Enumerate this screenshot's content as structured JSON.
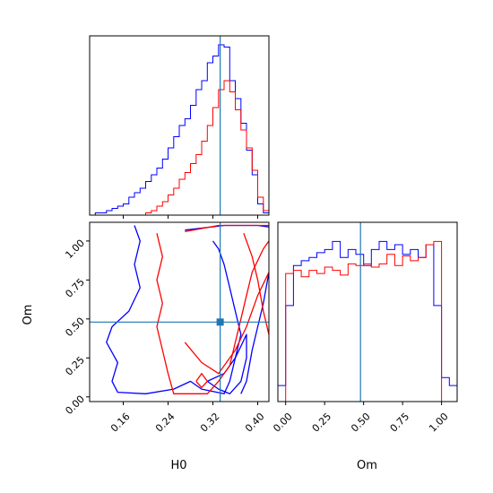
{
  "chart_data": {
    "type": "corner",
    "parameters": [
      "H0",
      "Om"
    ],
    "colors": {
      "run_a": "#0000ff",
      "run_b": "#ff0000",
      "truth": "#1f77b4"
    },
    "truth": {
      "H0": 0.333,
      "Om": 0.48
    },
    "panels": [
      {
        "id": "h0-marginal",
        "type": "step_histogram",
        "x_range": [
          0.1,
          0.42
        ],
        "bin_edges": [
          0.1,
          0.11,
          0.12,
          0.13,
          0.14,
          0.15,
          0.16,
          0.17,
          0.18,
          0.19,
          0.2,
          0.21,
          0.22,
          0.23,
          0.24,
          0.25,
          0.26,
          0.27,
          0.28,
          0.29,
          0.3,
          0.31,
          0.32,
          0.33,
          0.34,
          0.35,
          0.36,
          0.37,
          0.38,
          0.39,
          0.4,
          0.41,
          0.42
        ],
        "series": [
          {
            "id": "run_a",
            "color": "#0000ff",
            "counts": [
              0,
              1,
              1,
              2,
              3,
              4,
              5,
              8,
              10,
              12,
              15,
              18,
              21,
              25,
              30,
              35,
              40,
              43,
              49,
              56,
              60,
              68,
              71,
              76,
              75,
              60,
              52,
              41,
              29,
              18,
              5,
              1
            ]
          },
          {
            "id": "run_b",
            "color": "#ff0000",
            "counts": [
              0,
              0,
              0,
              0,
              0,
              0,
              0,
              0,
              0,
              0,
              1,
              2,
              4,
              6,
              9,
              12,
              16,
              19,
              23,
              27,
              33,
              40,
              48,
              56,
              60,
              55,
              47,
              38,
              30,
              20,
              8,
              2
            ]
          }
        ],
        "y_range": [
          0,
          80
        ]
      },
      {
        "id": "joint-h0-om",
        "type": "contour",
        "x_label": "H0",
        "y_label": "Om",
        "x_range": [
          0.1,
          0.42
        ],
        "y_range": [
          -0.03,
          1.12
        ],
        "x_ticks": [
          0.16,
          0.24,
          0.32,
          0.4
        ],
        "x_tick_labels": [
          "0.16",
          "0.24",
          "0.32",
          "0.40"
        ],
        "y_ticks": [
          0.0,
          0.25,
          0.5,
          0.75,
          1.0
        ],
        "y_tick_labels": [
          "0.00",
          "0.25",
          "0.50",
          "0.75",
          "1.00"
        ],
        "contours": [
          {
            "series": "run_a",
            "color": "#0000ff",
            "points": [
              [
                0.18,
                1.1
              ],
              [
                0.19,
                1.0
              ],
              [
                0.18,
                0.85
              ],
              [
                0.19,
                0.7
              ],
              [
                0.17,
                0.55
              ],
              [
                0.14,
                0.45
              ],
              [
                0.13,
                0.35
              ],
              [
                0.15,
                0.22
              ],
              [
                0.14,
                0.1
              ],
              [
                0.15,
                0.03
              ],
              [
                0.2,
                0.02
              ],
              [
                0.25,
                0.05
              ],
              [
                0.28,
                0.1
              ],
              [
                0.3,
                0.05
              ],
              [
                0.34,
                0.02
              ],
              [
                0.35,
                0.1
              ],
              [
                0.36,
                0.25
              ],
              [
                0.37,
                0.4
              ],
              [
                0.36,
                0.55
              ],
              [
                0.35,
                0.7
              ],
              [
                0.34,
                0.85
              ],
              [
                0.33,
                0.95
              ],
              [
                0.32,
                1.0
              ]
            ]
          },
          {
            "series": "run_a",
            "color": "#0000ff",
            "points": [
              [
                0.31,
                0.1
              ],
              [
                0.33,
                0.05
              ],
              [
                0.35,
                0.02
              ],
              [
                0.37,
                0.1
              ],
              [
                0.38,
                0.25
              ],
              [
                0.38,
                0.4
              ],
              [
                0.36,
                0.25
              ],
              [
                0.34,
                0.15
              ],
              [
                0.31,
                0.1
              ]
            ]
          },
          {
            "series": "run_a",
            "color": "#0000ff",
            "points": [
              [
                0.37,
                0.02
              ],
              [
                0.38,
                0.1
              ],
              [
                0.39,
                0.3
              ],
              [
                0.41,
                0.6
              ],
              [
                0.42,
                0.8
              ]
            ]
          },
          {
            "series": "run_a",
            "color": "#0000ff",
            "points": [
              [
                0.27,
                1.07
              ],
              [
                0.34,
                1.1
              ],
              [
                0.4,
                1.1
              ],
              [
                0.42,
                1.09
              ]
            ]
          },
          {
            "series": "run_b",
            "color": "#ff0000",
            "points": [
              [
                0.22,
                1.05
              ],
              [
                0.23,
                0.9
              ],
              [
                0.22,
                0.75
              ],
              [
                0.23,
                0.6
              ],
              [
                0.22,
                0.45
              ],
              [
                0.23,
                0.3
              ],
              [
                0.24,
                0.15
              ],
              [
                0.25,
                0.02
              ],
              [
                0.31,
                0.02
              ],
              [
                0.33,
                0.1
              ],
              [
                0.35,
                0.2
              ],
              [
                0.36,
                0.35
              ],
              [
                0.37,
                0.5
              ],
              [
                0.38,
                0.65
              ],
              [
                0.39,
                0.8
              ],
              [
                0.41,
                0.95
              ],
              [
                0.42,
                1.0
              ]
            ]
          },
          {
            "series": "run_b",
            "color": "#ff0000",
            "points": [
              [
                0.29,
                0.1
              ],
              [
                0.3,
                0.15
              ],
              [
                0.31,
                0.1
              ],
              [
                0.3,
                0.06
              ],
              [
                0.29,
                0.1
              ]
            ]
          },
          {
            "series": "run_b",
            "color": "#ff0000",
            "points": [
              [
                0.27,
                0.35
              ],
              [
                0.3,
                0.22
              ],
              [
                0.33,
                0.15
              ],
              [
                0.36,
                0.3
              ],
              [
                0.38,
                0.45
              ],
              [
                0.4,
                0.65
              ],
              [
                0.42,
                0.8
              ]
            ]
          },
          {
            "series": "run_b",
            "color": "#ff0000",
            "points": [
              [
                0.27,
                1.06
              ],
              [
                0.33,
                1.1
              ],
              [
                0.38,
                1.1
              ],
              [
                0.42,
                1.1
              ]
            ]
          },
          {
            "series": "run_b",
            "color": "#ff0000",
            "points": [
              [
                0.375,
                1.05
              ],
              [
                0.39,
                0.9
              ],
              [
                0.4,
                0.75
              ],
              [
                0.41,
                0.55
              ],
              [
                0.42,
                0.4
              ]
            ]
          }
        ]
      },
      {
        "id": "om-marginal",
        "type": "step_histogram",
        "x_label": "Om",
        "x_range": [
          -0.05,
          1.1
        ],
        "x_ticks": [
          0.0,
          0.25,
          0.5,
          0.75,
          1.0
        ],
        "x_tick_labels": [
          "0.00",
          "0.25",
          "0.50",
          "0.75",
          "1.00"
        ],
        "bin_edges": [
          -0.05,
          0.0,
          0.05,
          0.1,
          0.15,
          0.2,
          0.25,
          0.3,
          0.35,
          0.4,
          0.45,
          0.5,
          0.55,
          0.6,
          0.65,
          0.7,
          0.75,
          0.8,
          0.85,
          0.9,
          0.95,
          1.0,
          1.05,
          1.1
        ],
        "series": [
          {
            "id": "run_a",
            "color": "#0000ff",
            "counts": [
              10,
              60,
              85,
              88,
              90,
              93,
              95,
              100,
              90,
              95,
              92,
              85,
              95,
              100,
              95,
              98,
              92,
              95,
              90,
              98,
              60,
              15,
              10
            ]
          },
          {
            "id": "run_b",
            "color": "#ff0000",
            "counts": [
              0,
              80,
              82,
              78,
              82,
              80,
              84,
              82,
              79,
              86,
              85,
              86,
              84,
              86,
              92,
              85,
              91,
              88,
              90,
              98,
              100,
              0,
              0
            ]
          }
        ],
        "y_range": [
          0,
          112
        ]
      }
    ]
  }
}
